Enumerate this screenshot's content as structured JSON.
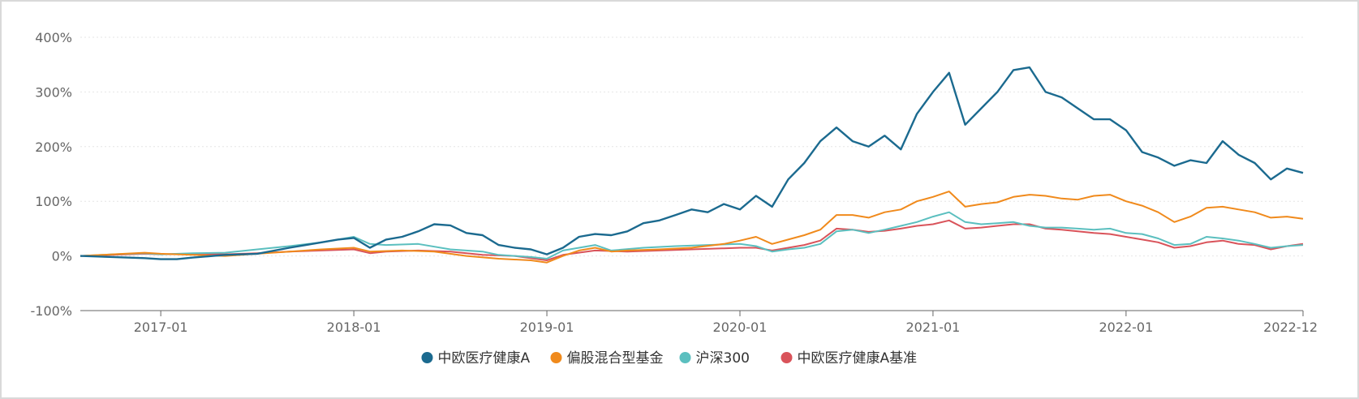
{
  "chart_data": {
    "type": "line",
    "title": "",
    "xlabel": "",
    "ylabel": "",
    "ylim": [
      -100,
      400
    ],
    "y_ticks": [
      {
        "value": -100,
        "label": "-100%"
      },
      {
        "value": 0,
        "label": "0%"
      },
      {
        "value": 100,
        "label": "100%"
      },
      {
        "value": 200,
        "label": "200%"
      },
      {
        "value": 300,
        "label": "300%"
      },
      {
        "value": 400,
        "label": "400%"
      }
    ],
    "x_range": [
      "2016-08",
      "2022-12"
    ],
    "x_ticks": [
      {
        "value": "2017-01",
        "label": "2017-01"
      },
      {
        "value": "2018-01",
        "label": "2018-01"
      },
      {
        "value": "2019-01",
        "label": "2019-01"
      },
      {
        "value": "2020-01",
        "label": "2020-01"
      },
      {
        "value": "2021-01",
        "label": "2021-01"
      },
      {
        "value": "2022-01",
        "label": "2022-01"
      },
      {
        "value": "2022-12",
        "label": "2022-12"
      }
    ],
    "grid": true,
    "legend_position": "bottom-center",
    "series": [
      {
        "name": "中欧医疗健康A",
        "color": "#1b6a8f",
        "points": [
          [
            "2016-08",
            0
          ],
          [
            "2016-10",
            -2
          ],
          [
            "2016-12",
            -4
          ],
          [
            "2017-01",
            -6
          ],
          [
            "2017-02",
            -6
          ],
          [
            "2017-03",
            -3
          ],
          [
            "2017-05",
            2
          ],
          [
            "2017-07",
            4
          ],
          [
            "2017-09",
            15
          ],
          [
            "2017-11",
            25
          ],
          [
            "2017-12",
            30
          ],
          [
            "2018-01",
            33
          ],
          [
            "2018-02",
            15
          ],
          [
            "2018-03",
            30
          ],
          [
            "2018-04",
            35
          ],
          [
            "2018-05",
            45
          ],
          [
            "2018-06",
            58
          ],
          [
            "2018-07",
            56
          ],
          [
            "2018-08",
            42
          ],
          [
            "2018-09",
            38
          ],
          [
            "2018-10",
            20
          ],
          [
            "2018-11",
            15
          ],
          [
            "2018-12",
            12
          ],
          [
            "2019-01",
            3
          ],
          [
            "2019-02",
            15
          ],
          [
            "2019-03",
            35
          ],
          [
            "2019-04",
            40
          ],
          [
            "2019-05",
            38
          ],
          [
            "2019-06",
            45
          ],
          [
            "2019-07",
            60
          ],
          [
            "2019-08",
            65
          ],
          [
            "2019-09",
            75
          ],
          [
            "2019-10",
            85
          ],
          [
            "2019-11",
            80
          ],
          [
            "2019-12",
            95
          ],
          [
            "2020-01",
            85
          ],
          [
            "2020-02",
            110
          ],
          [
            "2020-03",
            90
          ],
          [
            "2020-04",
            140
          ],
          [
            "2020-05",
            170
          ],
          [
            "2020-06",
            210
          ],
          [
            "2020-07",
            235
          ],
          [
            "2020-08",
            210
          ],
          [
            "2020-09",
            200
          ],
          [
            "2020-10",
            220
          ],
          [
            "2020-11",
            195
          ],
          [
            "2020-12",
            260
          ],
          [
            "2021-01",
            300
          ],
          [
            "2021-02",
            335
          ],
          [
            "2021-03",
            240
          ],
          [
            "2021-04",
            270
          ],
          [
            "2021-05",
            300
          ],
          [
            "2021-06",
            340
          ],
          [
            "2021-07",
            345
          ],
          [
            "2021-08",
            300
          ],
          [
            "2021-09",
            290
          ],
          [
            "2021-10",
            270
          ],
          [
            "2021-11",
            250
          ],
          [
            "2021-12",
            250
          ],
          [
            "2022-01",
            230
          ],
          [
            "2022-02",
            190
          ],
          [
            "2022-03",
            180
          ],
          [
            "2022-04",
            165
          ],
          [
            "2022-05",
            175
          ],
          [
            "2022-06",
            170
          ],
          [
            "2022-07",
            210
          ],
          [
            "2022-08",
            185
          ],
          [
            "2022-09",
            170
          ],
          [
            "2022-10",
            140
          ],
          [
            "2022-11",
            160
          ],
          [
            "2022-12",
            152
          ]
        ]
      },
      {
        "name": "偏股混合型基金",
        "color": "#f08a1c",
        "points": [
          [
            "2016-08",
            0
          ],
          [
            "2016-10",
            3
          ],
          [
            "2016-12",
            6
          ],
          [
            "2017-01",
            4
          ],
          [
            "2017-02",
            3
          ],
          [
            "2017-03",
            2
          ],
          [
            "2017-05",
            0
          ],
          [
            "2017-07",
            4
          ],
          [
            "2017-09",
            8
          ],
          [
            "2017-11",
            12
          ],
          [
            "2018-01",
            15
          ],
          [
            "2018-02",
            8
          ],
          [
            "2018-04",
            10
          ],
          [
            "2018-06",
            8
          ],
          [
            "2018-08",
            0
          ],
          [
            "2018-10",
            -5
          ],
          [
            "2018-12",
            -8
          ],
          [
            "2019-01",
            -12
          ],
          [
            "2019-02",
            0
          ],
          [
            "2019-03",
            10
          ],
          [
            "2019-04",
            15
          ],
          [
            "2019-05",
            8
          ],
          [
            "2019-06",
            10
          ],
          [
            "2019-08",
            12
          ],
          [
            "2019-10",
            15
          ],
          [
            "2019-12",
            22
          ],
          [
            "2020-01",
            28
          ],
          [
            "2020-02",
            35
          ],
          [
            "2020-03",
            22
          ],
          [
            "2020-04",
            30
          ],
          [
            "2020-05",
            38
          ],
          [
            "2020-06",
            48
          ],
          [
            "2020-07",
            75
          ],
          [
            "2020-08",
            75
          ],
          [
            "2020-09",
            70
          ],
          [
            "2020-10",
            80
          ],
          [
            "2020-11",
            85
          ],
          [
            "2020-12",
            100
          ],
          [
            "2021-01",
            108
          ],
          [
            "2021-02",
            118
          ],
          [
            "2021-03",
            90
          ],
          [
            "2021-04",
            95
          ],
          [
            "2021-05",
            98
          ],
          [
            "2021-06",
            108
          ],
          [
            "2021-07",
            112
          ],
          [
            "2021-08",
            110
          ],
          [
            "2021-09",
            105
          ],
          [
            "2021-10",
            103
          ],
          [
            "2021-11",
            110
          ],
          [
            "2021-12",
            112
          ],
          [
            "2022-01",
            100
          ],
          [
            "2022-02",
            92
          ],
          [
            "2022-03",
            80
          ],
          [
            "2022-04",
            62
          ],
          [
            "2022-05",
            72
          ],
          [
            "2022-06",
            88
          ],
          [
            "2022-07",
            90
          ],
          [
            "2022-08",
            85
          ],
          [
            "2022-09",
            80
          ],
          [
            "2022-10",
            70
          ],
          [
            "2022-11",
            72
          ],
          [
            "2022-12",
            68
          ]
        ]
      },
      {
        "name": "沪深300",
        "color": "#5bbfbf",
        "points": [
          [
            "2016-08",
            0
          ],
          [
            "2016-10",
            3
          ],
          [
            "2016-12",
            5
          ],
          [
            "2017-01",
            3
          ],
          [
            "2017-03",
            5
          ],
          [
            "2017-05",
            6
          ],
          [
            "2017-07",
            12
          ],
          [
            "2017-09",
            18
          ],
          [
            "2017-11",
            25
          ],
          [
            "2018-01",
            35
          ],
          [
            "2018-02",
            22
          ],
          [
            "2018-03",
            20
          ],
          [
            "2018-05",
            22
          ],
          [
            "2018-07",
            12
          ],
          [
            "2018-09",
            8
          ],
          [
            "2018-10",
            2
          ],
          [
            "2018-12",
            -2
          ],
          [
            "2019-01",
            -5
          ],
          [
            "2019-02",
            10
          ],
          [
            "2019-04",
            20
          ],
          [
            "2019-05",
            10
          ],
          [
            "2019-07",
            15
          ],
          [
            "2019-09",
            18
          ],
          [
            "2019-11",
            20
          ],
          [
            "2020-01",
            22
          ],
          [
            "2020-02",
            18
          ],
          [
            "2020-03",
            8
          ],
          [
            "2020-04",
            12
          ],
          [
            "2020-05",
            15
          ],
          [
            "2020-06",
            22
          ],
          [
            "2020-07",
            45
          ],
          [
            "2020-08",
            48
          ],
          [
            "2020-09",
            42
          ],
          [
            "2020-10",
            48
          ],
          [
            "2020-11",
            55
          ],
          [
            "2020-12",
            62
          ],
          [
            "2021-01",
            72
          ],
          [
            "2021-02",
            80
          ],
          [
            "2021-03",
            62
          ],
          [
            "2021-04",
            58
          ],
          [
            "2021-05",
            60
          ],
          [
            "2021-06",
            62
          ],
          [
            "2021-07",
            55
          ],
          [
            "2021-08",
            52
          ],
          [
            "2021-09",
            52
          ],
          [
            "2021-10",
            50
          ],
          [
            "2021-11",
            48
          ],
          [
            "2021-12",
            50
          ],
          [
            "2022-01",
            42
          ],
          [
            "2022-02",
            40
          ],
          [
            "2022-03",
            32
          ],
          [
            "2022-04",
            20
          ],
          [
            "2022-05",
            22
          ],
          [
            "2022-06",
            35
          ],
          [
            "2022-07",
            32
          ],
          [
            "2022-08",
            28
          ],
          [
            "2022-09",
            22
          ],
          [
            "2022-10",
            15
          ],
          [
            "2022-11",
            18
          ],
          [
            "2022-12",
            20
          ]
        ]
      },
      {
        "name": "中欧医疗健康A基准",
        "color": "#d9535a",
        "points": [
          [
            "2016-08",
            0
          ],
          [
            "2016-10",
            2
          ],
          [
            "2016-12",
            4
          ],
          [
            "2017-01",
            3
          ],
          [
            "2017-03",
            4
          ],
          [
            "2017-05",
            3
          ],
          [
            "2017-07",
            5
          ],
          [
            "2017-09",
            8
          ],
          [
            "2017-11",
            10
          ],
          [
            "2018-01",
            12
          ],
          [
            "2018-02",
            5
          ],
          [
            "2018-03",
            8
          ],
          [
            "2018-05",
            10
          ],
          [
            "2018-07",
            8
          ],
          [
            "2018-09",
            2
          ],
          [
            "2018-11",
            0
          ],
          [
            "2019-01",
            -8
          ],
          [
            "2019-02",
            2
          ],
          [
            "2019-04",
            10
          ],
          [
            "2019-06",
            8
          ],
          [
            "2019-08",
            10
          ],
          [
            "2019-10",
            12
          ],
          [
            "2019-12",
            14
          ],
          [
            "2020-01",
            15
          ],
          [
            "2020-02",
            15
          ],
          [
            "2020-03",
            10
          ],
          [
            "2020-04",
            15
          ],
          [
            "2020-05",
            20
          ],
          [
            "2020-06",
            28
          ],
          [
            "2020-07",
            50
          ],
          [
            "2020-08",
            48
          ],
          [
            "2020-09",
            44
          ],
          [
            "2020-10",
            46
          ],
          [
            "2020-11",
            50
          ],
          [
            "2020-12",
            55
          ],
          [
            "2021-01",
            58
          ],
          [
            "2021-02",
            65
          ],
          [
            "2021-03",
            50
          ],
          [
            "2021-04",
            52
          ],
          [
            "2021-05",
            55
          ],
          [
            "2021-06",
            58
          ],
          [
            "2021-07",
            58
          ],
          [
            "2021-08",
            50
          ],
          [
            "2021-09",
            48
          ],
          [
            "2021-10",
            45
          ],
          [
            "2021-11",
            42
          ],
          [
            "2021-12",
            40
          ],
          [
            "2022-01",
            35
          ],
          [
            "2022-02",
            30
          ],
          [
            "2022-03",
            25
          ],
          [
            "2022-04",
            15
          ],
          [
            "2022-05",
            18
          ],
          [
            "2022-06",
            25
          ],
          [
            "2022-07",
            28
          ],
          [
            "2022-08",
            22
          ],
          [
            "2022-09",
            20
          ],
          [
            "2022-10",
            12
          ],
          [
            "2022-11",
            18
          ],
          [
            "2022-12",
            22
          ]
        ]
      }
    ]
  }
}
